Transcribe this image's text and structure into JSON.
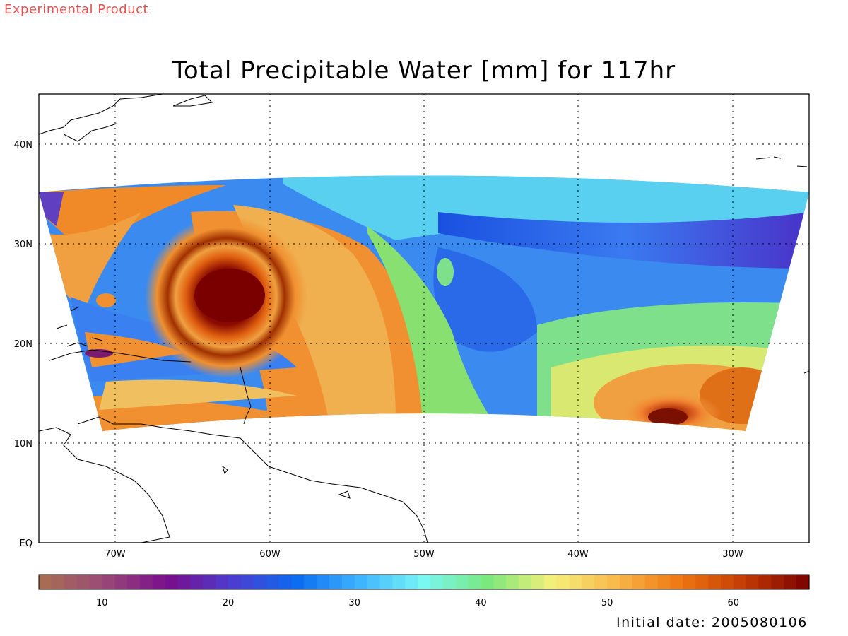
{
  "header": {
    "experimental_label": "Experimental Product"
  },
  "map": {
    "title": "Total Precipitable Water [mm] for 117hr",
    "lon_ticks": [
      "70W",
      "60W",
      "50W",
      "40W",
      "30W"
    ],
    "lat_ticks": [
      "40N",
      "30N",
      "20N",
      "10N",
      "EQ"
    ],
    "extent": {
      "lon_min": -75,
      "lon_max": -25,
      "lat_min": 0,
      "lat_max": 44
    }
  },
  "colorbar": {
    "min": 5,
    "max": 66,
    "ticks": [
      "10",
      "20",
      "30",
      "40",
      "50",
      "60"
    ],
    "tick_values": [
      10,
      20,
      30,
      40,
      50,
      60
    ],
    "colors": [
      "#a8704e",
      "#9a4a78",
      "#7a0d8a",
      "#4d3ccf",
      "#0a6bf0",
      "#3fb4ff",
      "#78f7f3",
      "#7be87b",
      "#f5f07a",
      "#f8b84a",
      "#ef7610",
      "#c23a05",
      "#7a0000"
    ]
  },
  "footer": {
    "initial_date": "Initial date: 2005080106"
  }
}
